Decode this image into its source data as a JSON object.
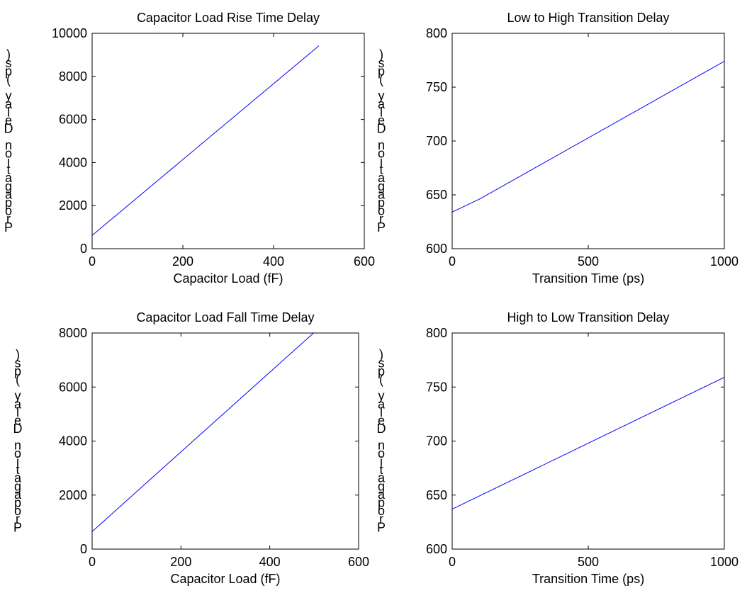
{
  "chart_data": [
    {
      "type": "line",
      "title": "Capacitor Load Rise Time Delay",
      "xlabel": "Capacitor Load (fF)",
      "ylabel": "Propagation Delay (ps)",
      "xlim": [
        0,
        600
      ],
      "ylim": [
        0,
        10000
      ],
      "xticks": [
        "0",
        "200",
        "400",
        "600"
      ],
      "yticks": [
        "0",
        "2000",
        "4000",
        "6000",
        "8000",
        "10000"
      ],
      "series": [
        {
          "x": [
            0,
            500
          ],
          "y": [
            620,
            9420
          ]
        }
      ],
      "line_color": "#0000ff"
    },
    {
      "type": "line",
      "title": "Low to High Transition Delay",
      "xlabel": "Transition Time (ps)",
      "ylabel": "Propagation Delay (ps)",
      "xlim": [
        0,
        1000
      ],
      "ylim": [
        600,
        800
      ],
      "xticks": [
        "0",
        "500",
        "1000"
      ],
      "yticks": [
        "600",
        "650",
        "700",
        "750",
        "800"
      ],
      "series": [
        {
          "x": [
            0,
            100,
            1000
          ],
          "y": [
            634,
            646,
            774
          ]
        }
      ],
      "line_color": "#0000ff"
    },
    {
      "type": "line",
      "title": "Capacitor Load Fall Time Delay",
      "xlabel": "Capacitor Load (fF)",
      "ylabel": "Propagation Delay (ps)",
      "xlim": [
        0,
        600
      ],
      "ylim": [
        0,
        8000
      ],
      "xticks": [
        "0",
        "200",
        "400",
        "600"
      ],
      "yticks": [
        "0",
        "2000",
        "4000",
        "6000",
        "8000"
      ],
      "series": [
        {
          "x": [
            0,
            500
          ],
          "y": [
            650,
            8020
          ]
        }
      ],
      "line_color": "#0000ff"
    },
    {
      "type": "line",
      "title": "High to Low Transition Delay",
      "xlabel": "Transition Time (ps)",
      "ylabel": "Propagation Delay (ps)",
      "xlim": [
        0,
        1000
      ],
      "ylim": [
        600,
        800
      ],
      "xticks": [
        "0",
        "500",
        "1000"
      ],
      "yticks": [
        "600",
        "650",
        "700",
        "750",
        "800"
      ],
      "series": [
        {
          "x": [
            0,
            1000
          ],
          "y": [
            637,
            759
          ]
        }
      ],
      "line_color": "#0000ff"
    }
  ]
}
